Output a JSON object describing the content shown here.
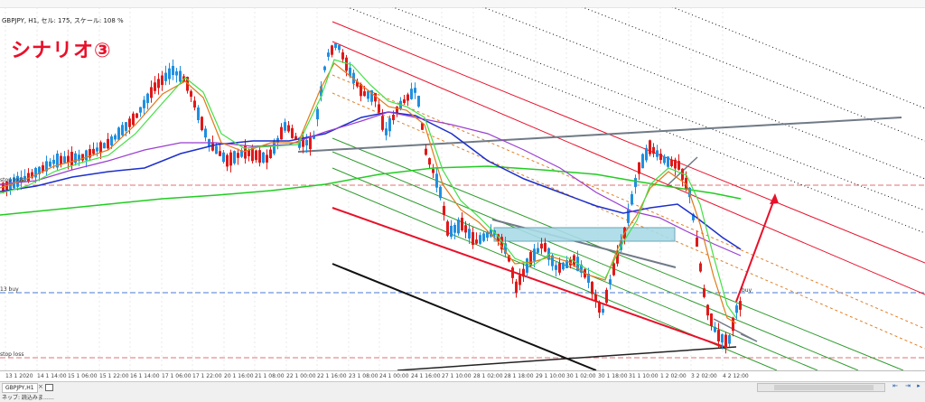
{
  "header": {
    "symbol_info": "GBPJPY, H1, セル: 175, スケール: 108 %"
  },
  "annotation": {
    "scenario_title": "シナリオ③"
  },
  "level_labels": {
    "left_upper": "stop loss",
    "buy_label": "13 buy",
    "stop_label": "stop loss",
    "buy_right": "buy"
  },
  "time_axis": {
    "ticks": [
      "13 1 2020",
      "14 1 14:00",
      "15 1 06:00",
      "15 1 22:00",
      "16 1 14:00",
      "17 1 06:00",
      "17 1 22:00",
      "20 1 16:00",
      "21 1 08:00",
      "22 1 00:00",
      "22 1 16:00",
      "23 1 08:00",
      "24 1 00:00",
      "24 1 16:00",
      "27 1 10:00",
      "28 1 02:00",
      "28 1 18:00",
      "29 1 10:00",
      "30 1 02:00",
      "30 1 18:00",
      "31 1 10:00",
      "1 2 02:00",
      "3 2 02:00",
      "4 2 12:00"
    ]
  },
  "bottom_bar": {
    "tab_label": "GBPJPY,H1",
    "tab_close": "×",
    "status": "ネッブ: 読込みま……"
  },
  "colors": {
    "scenario_red": "#e8102a",
    "bull_candle": "#e01919",
    "bear_candle": "#1f8fe0",
    "ma_green": "#22cc22",
    "ma_blue": "#1c2fcc",
    "ma_purple": "#9a3fd1",
    "ma_orange": "#e07a1a",
    "ma_lightgreen": "#44e044",
    "channel_red": "#e8102a",
    "channel_green": "#2e9a2e",
    "trend_gray": "#707a86",
    "zone_fill": "#a9dbe6",
    "arrow_red": "#e8102a"
  }
}
